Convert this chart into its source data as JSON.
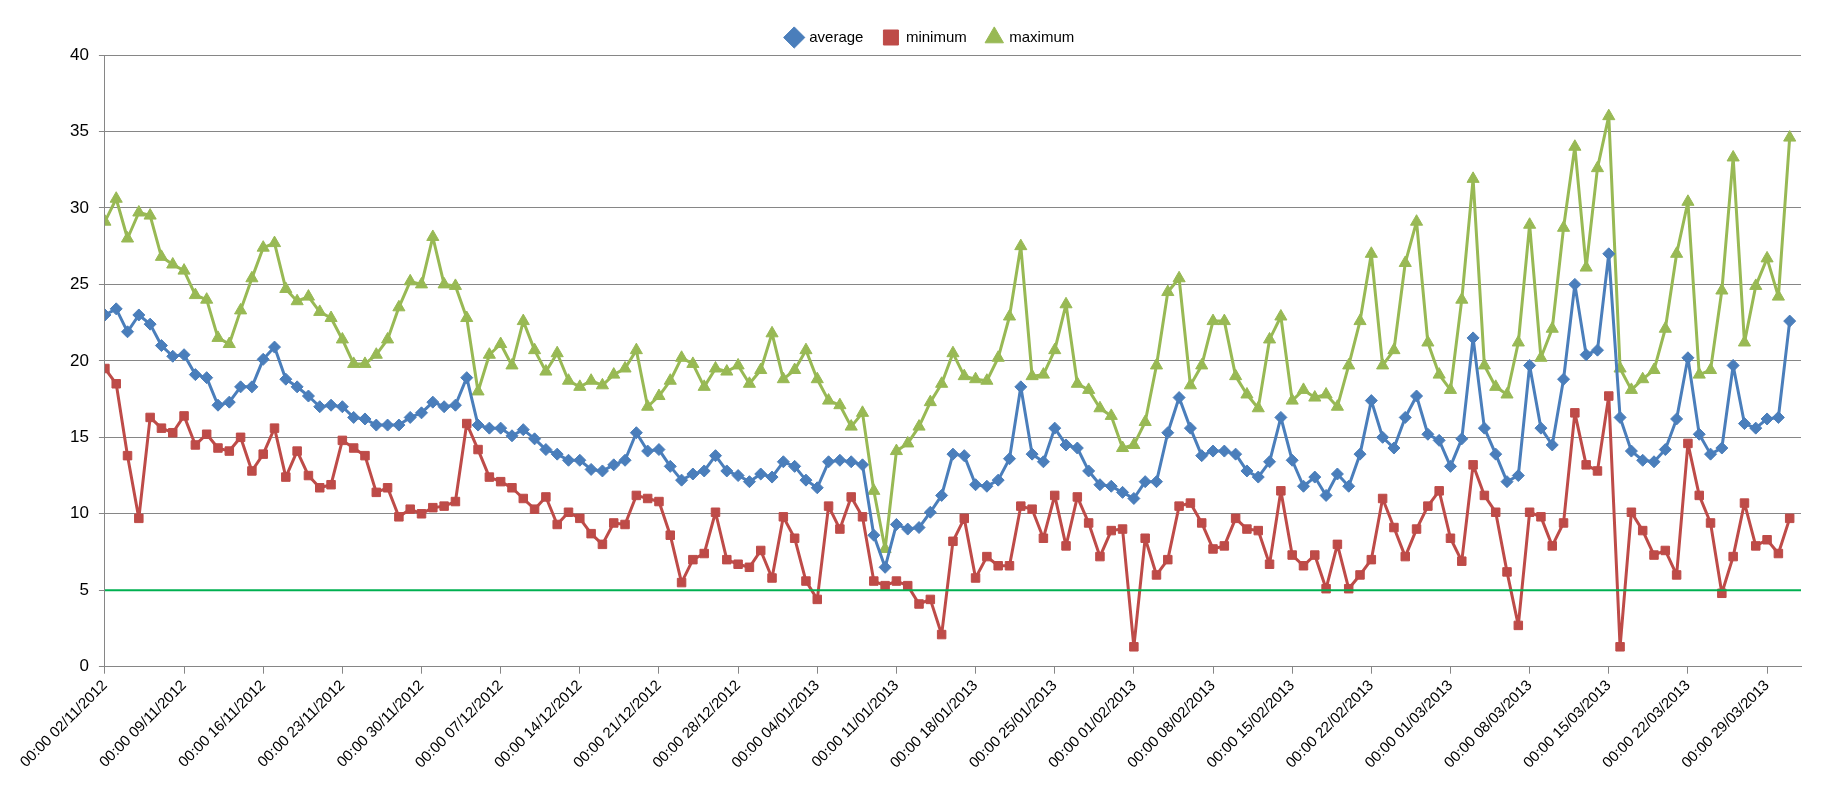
{
  "chart_data": {
    "type": "line",
    "legend": "top",
    "grid": "y",
    "line_style": "solid",
    "x": [
      "2012-11-02",
      "2012-11-03",
      "2012-11-04",
      "2012-11-05",
      "2012-11-06",
      "2012-11-07",
      "2012-11-08",
      "2012-11-09",
      "2012-11-10",
      "2012-11-11",
      "2012-11-12",
      "2012-11-13",
      "2012-11-14",
      "2012-11-15",
      "2012-11-16",
      "2012-11-17",
      "2012-11-18",
      "2012-11-19",
      "2012-11-20",
      "2012-11-21",
      "2012-11-22",
      "2012-11-23",
      "2012-11-24",
      "2012-11-25",
      "2012-11-26",
      "2012-11-27",
      "2012-11-28",
      "2012-11-29",
      "2012-11-30",
      "2012-12-01",
      "2012-12-02",
      "2012-12-03",
      "2012-12-04",
      "2012-12-05",
      "2012-12-06",
      "2012-12-07",
      "2012-12-08",
      "2012-12-09",
      "2012-12-10",
      "2012-12-11",
      "2012-12-12",
      "2012-12-13",
      "2012-12-14",
      "2012-12-15",
      "2012-12-16",
      "2012-12-17",
      "2012-12-18",
      "2012-12-19",
      "2012-12-20",
      "2012-12-21",
      "2012-12-22",
      "2012-12-23",
      "2012-12-24",
      "2012-12-25",
      "2012-12-26",
      "2012-12-27",
      "2012-12-28",
      "2012-12-29",
      "2012-12-30",
      "2012-12-31",
      "2013-01-01",
      "2013-01-02",
      "2013-01-03",
      "2013-01-04",
      "2013-01-05",
      "2013-01-06",
      "2013-01-07",
      "2013-01-08",
      "2013-01-09",
      "2013-01-10",
      "2013-01-11",
      "2013-01-12",
      "2013-01-13",
      "2013-01-14",
      "2013-01-15",
      "2013-01-16",
      "2013-01-17",
      "2013-01-18",
      "2013-01-19",
      "2013-01-20",
      "2013-01-21",
      "2013-01-22",
      "2013-01-23",
      "2013-01-24",
      "2013-01-25",
      "2013-01-26",
      "2013-01-27",
      "2013-01-28",
      "2013-01-29",
      "2013-01-30",
      "2013-01-31",
      "2013-02-01",
      "2013-02-02",
      "2013-02-03",
      "2013-02-04",
      "2013-02-05",
      "2013-02-06",
      "2013-02-07",
      "2013-02-08",
      "2013-02-09",
      "2013-02-10",
      "2013-02-11",
      "2013-02-12",
      "2013-02-13",
      "2013-02-14",
      "2013-02-15",
      "2013-02-16",
      "2013-02-17",
      "2013-02-18",
      "2013-02-19",
      "2013-02-20",
      "2013-02-21",
      "2013-02-22",
      "2013-02-23",
      "2013-02-24",
      "2013-02-25",
      "2013-02-26",
      "2013-02-27",
      "2013-02-28",
      "2013-03-01",
      "2013-03-02",
      "2013-03-03",
      "2013-03-04",
      "2013-03-05",
      "2013-03-06",
      "2013-03-07",
      "2013-03-08",
      "2013-03-09",
      "2013-03-10",
      "2013-03-11",
      "2013-03-12",
      "2013-03-13",
      "2013-03-14",
      "2013-03-15",
      "2013-03-16",
      "2013-03-17",
      "2013-03-18",
      "2013-03-19",
      "2013-03-20",
      "2013-03-21",
      "2013-03-22",
      "2013-03-23",
      "2013-03-24",
      "2013-03-25",
      "2013-03-26",
      "2013-03-27",
      "2013-03-28",
      "2013-03-29",
      "2013-03-30",
      "2013-03-31"
    ],
    "xlim": [
      "2012-11-02",
      "2013-04-01"
    ],
    "xticks": [
      {
        "value": "2012-11-02",
        "label": "00:00 02/11/2012"
      },
      {
        "value": "2012-11-09",
        "label": "00:00 09/11/2012"
      },
      {
        "value": "2012-11-16",
        "label": "00:00 16/11/2012"
      },
      {
        "value": "2012-11-23",
        "label": "00:00 23/11/2012"
      },
      {
        "value": "2012-11-30",
        "label": "00:00 30/11/2012"
      },
      {
        "value": "2012-12-07",
        "label": "00:00 07/12/2012"
      },
      {
        "value": "2012-12-14",
        "label": "00:00 14/12/2012"
      },
      {
        "value": "2012-12-21",
        "label": "00:00 21/12/2012"
      },
      {
        "value": "2012-12-28",
        "label": "00:00 28/12/2012"
      },
      {
        "value": "2013-01-04",
        "label": "00:00 04/01/2013"
      },
      {
        "value": "2013-01-11",
        "label": "00:00 11/01/2013"
      },
      {
        "value": "2013-01-18",
        "label": "00:00 18/01/2013"
      },
      {
        "value": "2013-01-25",
        "label": "00:00 25/01/2013"
      },
      {
        "value": "2013-02-01",
        "label": "00:00 01/02/2013"
      },
      {
        "value": "2013-02-08",
        "label": "00:00 08/02/2013"
      },
      {
        "value": "2013-02-15",
        "label": "00:00 15/02/2013"
      },
      {
        "value": "2013-02-22",
        "label": "00:00 22/02/2013"
      },
      {
        "value": "2013-03-01",
        "label": "00:00 01/03/2013"
      },
      {
        "value": "2013-03-08",
        "label": "00:00 08/03/2013"
      },
      {
        "value": "2013-03-15",
        "label": "00:00 15/03/2013"
      },
      {
        "value": "2013-03-22",
        "label": "00:00 22/03/2013"
      },
      {
        "value": "2013-03-29",
        "label": "00:00 29/03/2013"
      }
    ],
    "ylim": [
      0,
      40
    ],
    "yticks": [
      0,
      5,
      10,
      15,
      20,
      25,
      30,
      35,
      40
    ],
    "ref_lines": [
      {
        "axis": "y",
        "value": 5,
        "color": "#00b050"
      }
    ],
    "series": [
      {
        "name": "average",
        "color": "#4a7ebb",
        "marker": "diamond",
        "values": [
          23.0,
          23.4,
          21.9,
          23.0,
          22.4,
          21.0,
          20.3,
          20.4,
          19.1,
          18.9,
          17.1,
          17.3,
          18.3,
          18.3,
          20.1,
          20.9,
          18.8,
          18.3,
          17.7,
          17.0,
          17.1,
          17.0,
          16.3,
          16.2,
          15.8,
          15.8,
          15.8,
          16.3,
          16.6,
          17.3,
          17.0,
          17.1,
          18.9,
          15.8,
          15.6,
          15.6,
          15.1,
          15.5,
          14.9,
          14.2,
          13.9,
          13.5,
          13.5,
          12.9,
          12.8,
          13.2,
          13.5,
          15.3,
          14.1,
          14.2,
          13.1,
          12.2,
          12.6,
          12.8,
          13.8,
          12.8,
          12.5,
          12.1,
          12.6,
          12.4,
          13.4,
          13.1,
          12.2,
          11.7,
          13.4,
          13.5,
          13.4,
          13.2,
          8.6,
          6.5,
          9.3,
          9.0,
          9.1,
          10.1,
          11.2,
          13.9,
          13.8,
          11.9,
          11.8,
          12.2,
          13.6,
          18.3,
          13.9,
          13.4,
          15.6,
          14.5,
          14.3,
          12.8,
          11.9,
          11.8,
          11.4,
          11.0,
          12.1,
          12.1,
          15.3,
          17.6,
          15.6,
          13.8,
          14.1,
          14.1,
          13.9,
          12.8,
          12.4,
          13.4,
          16.3,
          13.5,
          11.8,
          12.4,
          11.2,
          12.6,
          11.8,
          13.9,
          17.4,
          15.0,
          14.3,
          16.3,
          17.7,
          15.2,
          14.8,
          13.1,
          14.9,
          21.5,
          15.6,
          13.9,
          12.1,
          12.5,
          19.7,
          15.6,
          14.5,
          18.8,
          25.0,
          20.4,
          20.7,
          27.0,
          16.3,
          14.1,
          13.5,
          13.4,
          14.2,
          16.2,
          20.2,
          15.2,
          13.9,
          14.3,
          19.7,
          15.9,
          15.6,
          16.2,
          16.3,
          22.6
        ]
      },
      {
        "name": "minimum",
        "color": "#be4b48",
        "marker": "square",
        "values": [
          19.5,
          18.5,
          13.8,
          9.7,
          16.3,
          15.6,
          15.3,
          16.4,
          14.5,
          15.2,
          14.3,
          14.1,
          15.0,
          12.8,
          13.9,
          15.6,
          12.4,
          14.1,
          12.5,
          11.7,
          11.9,
          14.8,
          14.3,
          13.8,
          11.4,
          11.7,
          9.8,
          10.3,
          10.0,
          10.4,
          10.5,
          10.8,
          15.9,
          14.2,
          12.4,
          12.1,
          11.7,
          11.0,
          10.3,
          11.1,
          9.3,
          10.1,
          9.7,
          8.7,
          8.0,
          9.4,
          9.3,
          11.2,
          11.0,
          10.8,
          8.6,
          5.5,
          7.0,
          7.4,
          10.1,
          7.0,
          6.7,
          6.5,
          7.6,
          5.8,
          9.8,
          8.4,
          5.6,
          4.4,
          10.5,
          9.0,
          11.1,
          9.8,
          5.6,
          5.3,
          5.6,
          5.3,
          4.1,
          4.4,
          2.1,
          8.2,
          9.7,
          5.8,
          7.2,
          6.6,
          6.6,
          10.5,
          10.3,
          8.4,
          11.2,
          7.9,
          11.1,
          9.4,
          7.2,
          8.9,
          9.0,
          1.3,
          8.4,
          6.0,
          7.0,
          10.5,
          10.7,
          9.4,
          7.7,
          7.9,
          9.7,
          9.0,
          8.9,
          6.7,
          11.5,
          7.3,
          6.6,
          7.3,
          5.1,
          8.0,
          5.1,
          6.0,
          7.0,
          11.0,
          9.1,
          7.2,
          9.0,
          10.5,
          11.5,
          8.4,
          6.9,
          13.2,
          11.2,
          10.1,
          6.2,
          2.7,
          10.1,
          9.8,
          7.9,
          9.4,
          16.6,
          13.2,
          12.8,
          17.7,
          1.3,
          10.1,
          8.9,
          7.3,
          7.6,
          6.0,
          14.6,
          11.2,
          9.4,
          4.8,
          7.2,
          10.7,
          7.9,
          8.3,
          7.4,
          9.7
        ]
      },
      {
        "name": "maximum",
        "color": "#98b954",
        "marker": "triangle",
        "values": [
          29.1,
          30.6,
          28.0,
          29.7,
          29.5,
          26.8,
          26.3,
          25.9,
          24.3,
          24.0,
          21.5,
          21.1,
          23.3,
          25.4,
          27.4,
          27.7,
          24.7,
          23.9,
          24.2,
          23.2,
          22.8,
          21.4,
          19.8,
          19.8,
          20.4,
          21.4,
          23.5,
          25.2,
          25.0,
          28.1,
          25.0,
          24.9,
          22.8,
          18.0,
          20.4,
          21.1,
          19.7,
          22.6,
          20.7,
          19.3,
          20.5,
          18.7,
          18.3,
          18.7,
          18.4,
          19.1,
          19.5,
          20.7,
          17.0,
          17.7,
          18.7,
          20.2,
          19.8,
          18.3,
          19.5,
          19.3,
          19.7,
          18.5,
          19.4,
          21.8,
          18.8,
          19.4,
          20.7,
          18.8,
          17.4,
          17.1,
          15.7,
          16.6,
          11.5,
          7.7,
          14.1,
          14.6,
          15.7,
          17.3,
          18.5,
          20.5,
          19.0,
          18.8,
          18.7,
          20.2,
          22.9,
          27.5,
          19.0,
          19.1,
          20.7,
          23.7,
          18.5,
          18.1,
          16.9,
          16.4,
          14.3,
          14.5,
          16.0,
          19.7,
          24.5,
          25.4,
          18.4,
          19.7,
          22.6,
          22.6,
          19.0,
          17.8,
          16.9,
          21.4,
          22.9,
          17.4,
          18.1,
          17.6,
          17.8,
          17.0,
          19.7,
          22.6,
          27.0,
          19.7,
          20.7,
          26.4,
          29.1,
          21.2,
          19.1,
          18.1,
          24.0,
          31.9,
          19.7,
          18.3,
          17.8,
          21.2,
          28.9,
          20.2,
          22.1,
          28.7,
          34.0,
          26.1,
          32.6,
          36.0,
          19.5,
          18.1,
          18.8,
          19.4,
          22.1,
          27.0,
          30.4,
          19.1,
          19.4,
          24.6,
          33.3,
          21.2,
          24.9,
          26.7,
          24.2,
          34.6
        ]
      }
    ]
  }
}
